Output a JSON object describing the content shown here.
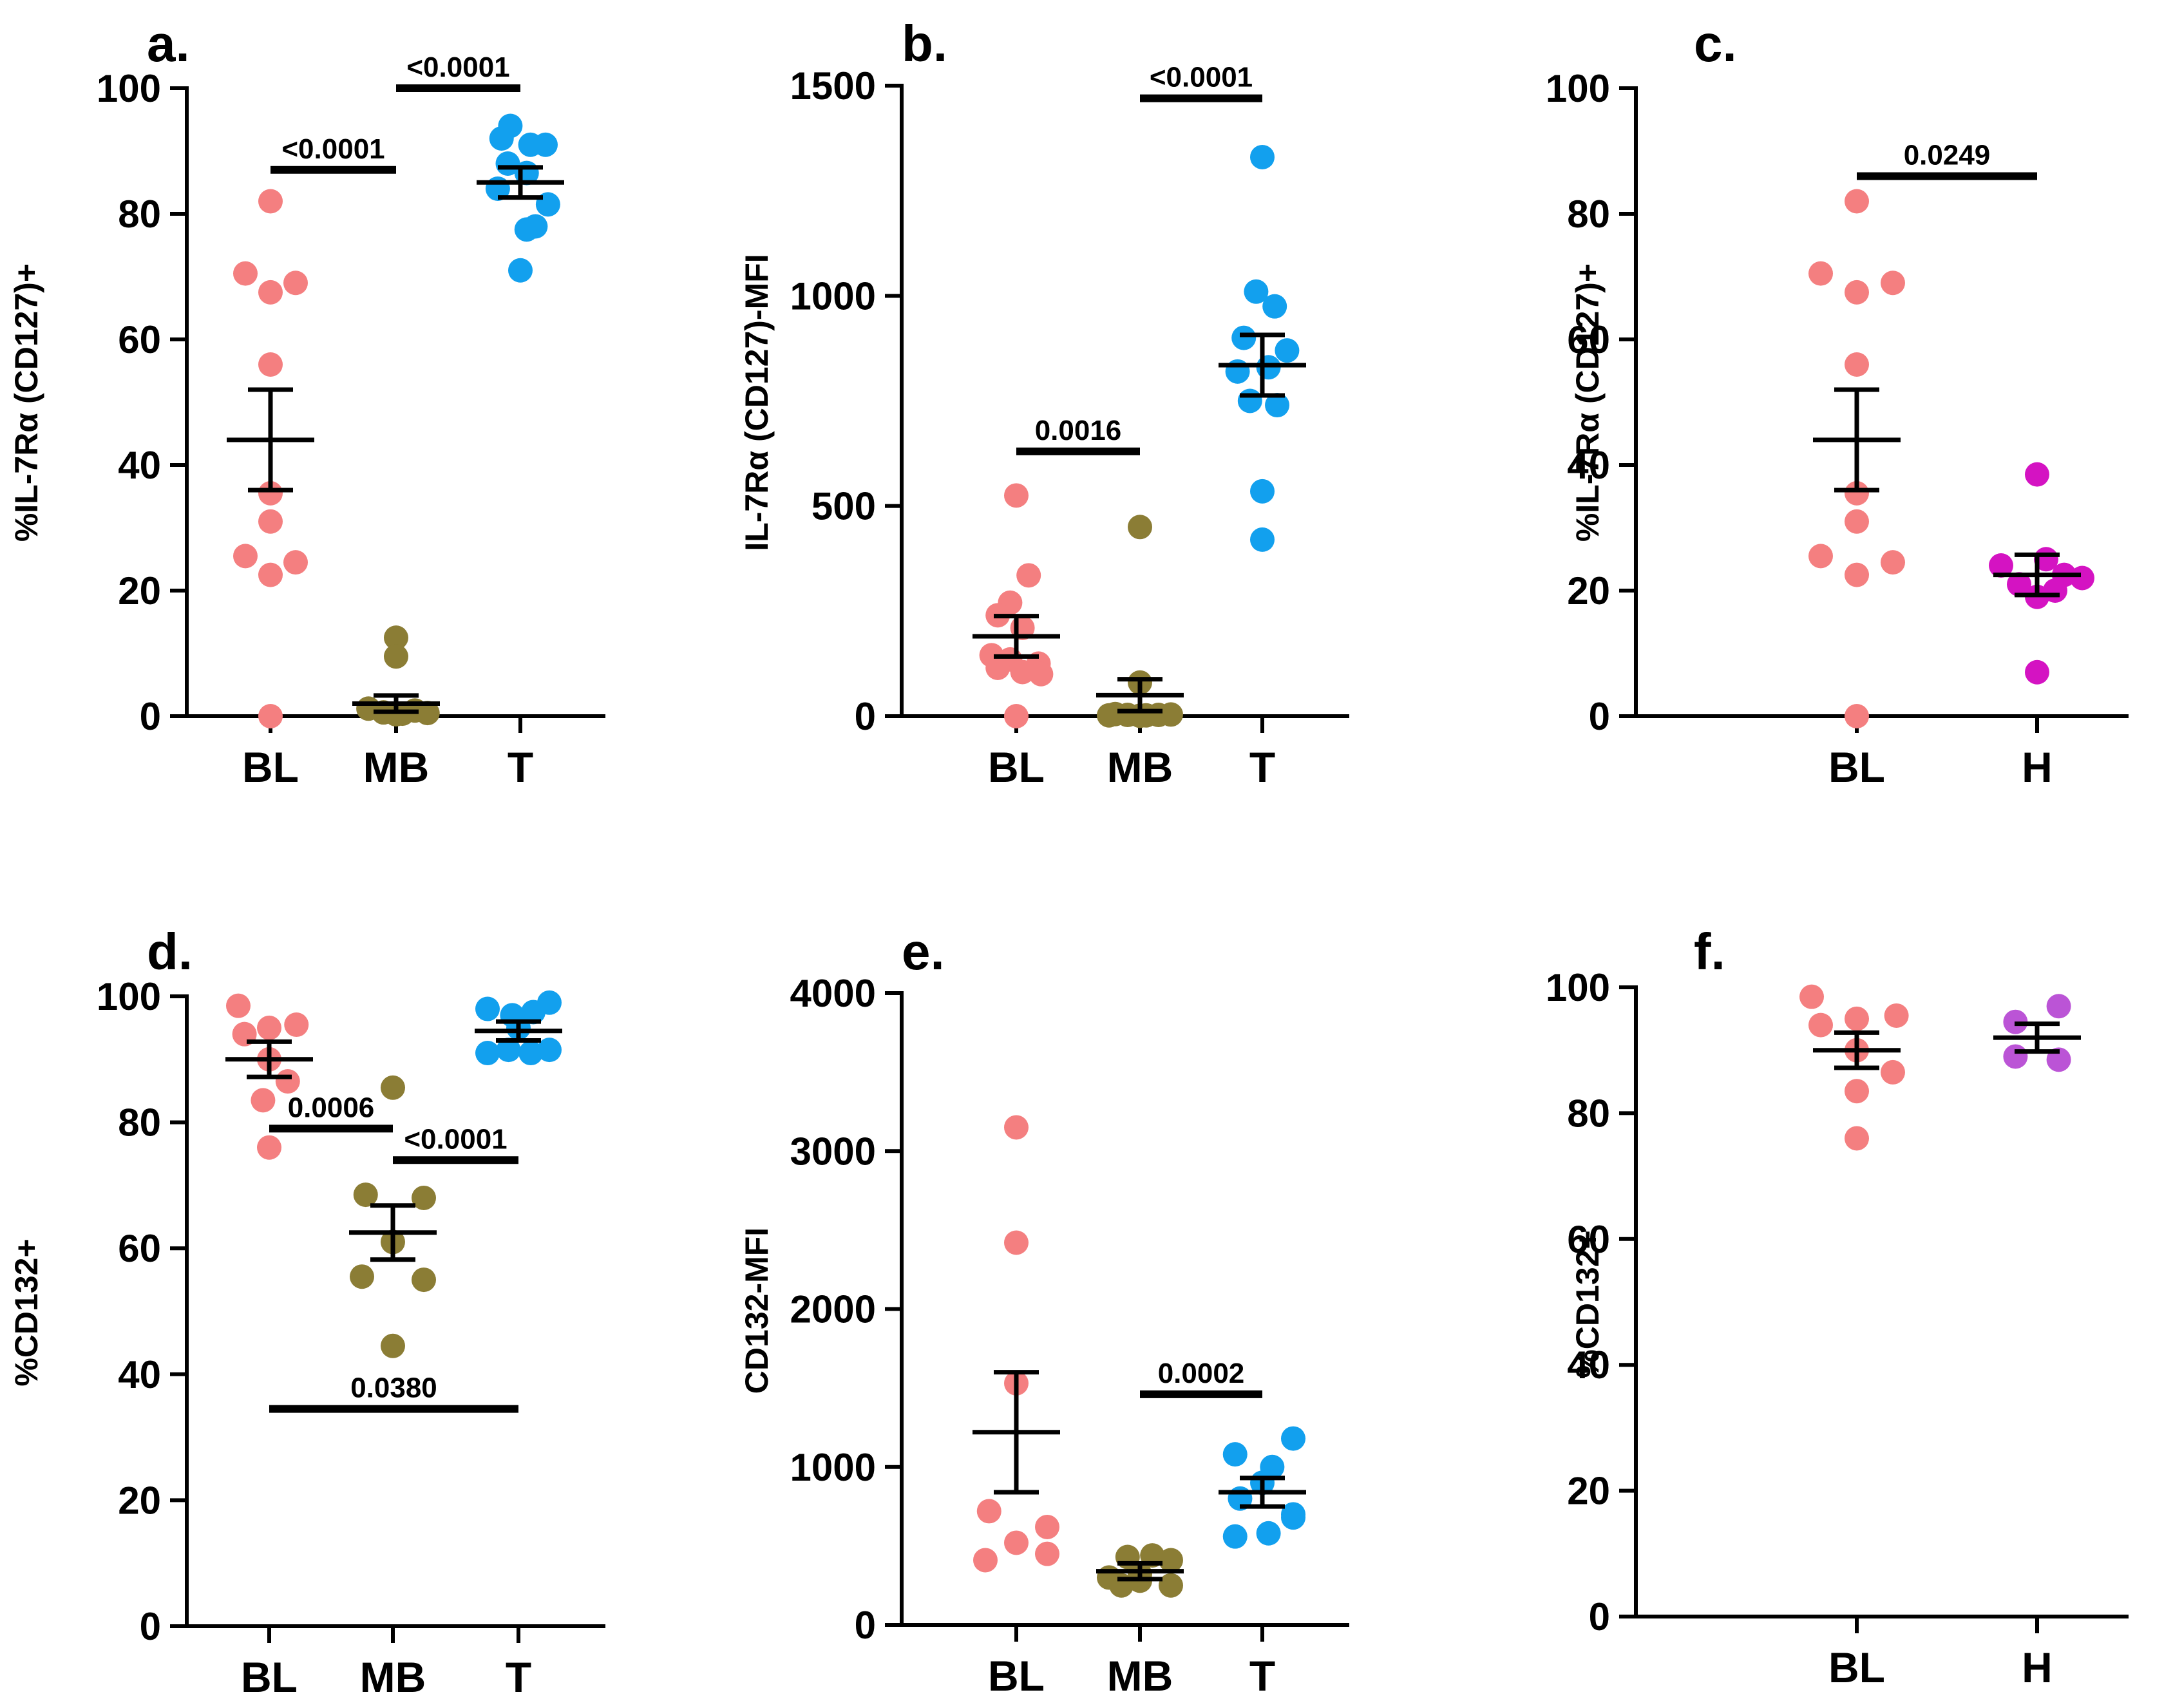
{
  "colors": {
    "BL": "#f47f80",
    "MB": "#8b7d35",
    "T": "#12a0ee",
    "H_c": "#d413c2",
    "H_f": "#bb54d6",
    "axis": "#000000"
  },
  "chart_data": [
    {
      "id": "a",
      "type": "scatter",
      "letter": "a.",
      "ylabel": "%IL-7Rα (CD127)+",
      "ylim": [
        0,
        100
      ],
      "yticks": [
        "0",
        "20",
        "40",
        "60",
        "80",
        "100"
      ],
      "categories": [
        "BL",
        "MB",
        "T"
      ],
      "series": [
        {
          "name": "BL",
          "color": "BL",
          "mean": 44,
          "sem": 8,
          "points": [
            [
              0,
              82
            ],
            [
              -0.2,
              70.5
            ],
            [
              0,
              67.5
            ],
            [
              0.2,
              69
            ],
            [
              0,
              56
            ],
            [
              0,
              35.5
            ],
            [
              0,
              31
            ],
            [
              -0.2,
              25.5
            ],
            [
              0,
              22.5
            ],
            [
              0.2,
              24.5
            ],
            [
              0,
              0
            ]
          ]
        },
        {
          "name": "MB",
          "color": "MB",
          "mean": 2,
          "sem": 1.3,
          "points": [
            [
              0,
              12.5
            ],
            [
              0,
              9.5
            ],
            [
              -0.22,
              1.2
            ],
            [
              -0.1,
              0.6
            ],
            [
              0.05,
              0.4
            ],
            [
              0.15,
              0.9
            ],
            [
              0.25,
              0.5
            ],
            [
              0,
              0.3
            ]
          ]
        },
        {
          "name": "T",
          "color": "T",
          "mean": 85,
          "sem": 2.4,
          "points": [
            [
              -0.08,
              94
            ],
            [
              0.08,
              91
            ],
            [
              -0.15,
              92
            ],
            [
              0.2,
              91
            ],
            [
              -0.1,
              88
            ],
            [
              0.05,
              86.5
            ],
            [
              -0.18,
              84
            ],
            [
              0.22,
              81.5
            ],
            [
              0.12,
              78
            ],
            [
              0.05,
              77.5
            ],
            [
              0,
              71
            ]
          ]
        }
      ],
      "comparisons": [
        {
          "from": 0,
          "to": 1,
          "y": 87,
          "label": "<0.0001"
        },
        {
          "from": 1,
          "to": 2,
          "y": 100,
          "label": "<0.0001"
        }
      ]
    },
    {
      "id": "b",
      "type": "scatter",
      "letter": "b.",
      "ylabel": "IL-7Rα (CD127)-MFI",
      "ylim": [
        0,
        1500
      ],
      "yticks": [
        "0",
        "500",
        "1000",
        "1500"
      ],
      "categories": [
        "BL",
        "MB",
        "T"
      ],
      "series": [
        {
          "name": "BL",
          "color": "BL",
          "mean": 190,
          "sem": 48,
          "points": [
            [
              0,
              525
            ],
            [
              0.1,
              335
            ],
            [
              -0.05,
              270
            ],
            [
              -0.15,
              240
            ],
            [
              0.05,
              210
            ],
            [
              -0.2,
              145
            ],
            [
              -0.05,
              135
            ],
            [
              0.18,
              125
            ],
            [
              -0.15,
              115
            ],
            [
              0.05,
              105
            ],
            [
              0.2,
              100
            ],
            [
              0,
              0
            ]
          ]
        },
        {
          "name": "MB",
          "color": "MB",
          "mean": 50,
          "sem": 38,
          "points": [
            [
              0,
              450
            ],
            [
              0,
              80
            ],
            [
              -0.2,
              5
            ],
            [
              -0.1,
              3
            ],
            [
              0.05,
              2
            ],
            [
              0.15,
              3
            ],
            [
              0.25,
              4
            ],
            [
              -0.25,
              2
            ],
            [
              0,
              1
            ]
          ]
        },
        {
          "name": "T",
          "color": "T",
          "mean": 835,
          "sem": 72,
          "points": [
            [
              0,
              1330
            ],
            [
              -0.05,
              1010
            ],
            [
              0.1,
              975
            ],
            [
              -0.15,
              900
            ],
            [
              0.2,
              870
            ],
            [
              0.05,
              830
            ],
            [
              -0.2,
              820
            ],
            [
              -0.1,
              750
            ],
            [
              0.12,
              740
            ],
            [
              0,
              535
            ],
            [
              0,
              420
            ]
          ]
        }
      ],
      "comparisons": [
        {
          "from": 0,
          "to": 1,
          "y": 630,
          "label": "0.0016"
        },
        {
          "from": 1,
          "to": 2,
          "y": 1470,
          "label": "<0.0001"
        }
      ]
    },
    {
      "id": "c",
      "type": "scatter",
      "letter": "c.",
      "ylabel": "%IL-7Rα (CD127)+",
      "ylim": [
        0,
        100
      ],
      "yticks": [
        "0",
        "20",
        "40",
        "60",
        "80",
        "100"
      ],
      "categories": [
        "BL",
        "H"
      ],
      "series": [
        {
          "name": "BL",
          "color": "BL",
          "mean": 44,
          "sem": 8,
          "points": [
            [
              0,
              82
            ],
            [
              -0.2,
              70.5
            ],
            [
              0,
              67.5
            ],
            [
              0.2,
              69
            ],
            [
              0,
              56
            ],
            [
              0,
              35.5
            ],
            [
              0,
              31
            ],
            [
              -0.2,
              25.5
            ],
            [
              0,
              22.5
            ],
            [
              0.2,
              24.5
            ],
            [
              0,
              0
            ]
          ]
        },
        {
          "name": "H",
          "color": "H_c",
          "mean": 22.5,
          "sem": 3.2,
          "points": [
            [
              0,
              38.5
            ],
            [
              -0.2,
              24
            ],
            [
              0.05,
              25
            ],
            [
              0.15,
              22.5
            ],
            [
              -0.1,
              21
            ],
            [
              0.1,
              20
            ],
            [
              0.25,
              22
            ],
            [
              0,
              19
            ],
            [
              0,
              7
            ]
          ]
        }
      ],
      "comparisons": [
        {
          "from": 0,
          "to": 1,
          "y": 86,
          "label": "0.0249"
        }
      ]
    },
    {
      "id": "d",
      "type": "scatter",
      "letter": "d.",
      "ylabel": "%CD132+",
      "ylim": [
        0,
        100
      ],
      "yticks": [
        "0",
        "20",
        "40",
        "60",
        "80",
        "100"
      ],
      "categories": [
        "BL",
        "MB",
        "T"
      ],
      "series": [
        {
          "name": "BL",
          "color": "BL",
          "mean": 90,
          "sem": 2.8,
          "points": [
            [
              -0.25,
              98.5
            ],
            [
              -0.2,
              94
            ],
            [
              0,
              95
            ],
            [
              0.22,
              95.5
            ],
            [
              0,
              90
            ],
            [
              0.15,
              86.5
            ],
            [
              -0.05,
              83.5
            ],
            [
              0,
              76
            ]
          ]
        },
        {
          "name": "MB",
          "color": "MB",
          "mean": 62.5,
          "sem": 4.3,
          "points": [
            [
              0,
              85.5
            ],
            [
              -0.22,
              68.5
            ],
            [
              0.25,
              68
            ],
            [
              0,
              61
            ],
            [
              -0.25,
              55.5
            ],
            [
              0.25,
              55
            ],
            [
              0,
              44.5
            ]
          ]
        },
        {
          "name": "T",
          "color": "T",
          "mean": 94.5,
          "sem": 1.5,
          "points": [
            [
              -0.25,
              98
            ],
            [
              -0.05,
              97
            ],
            [
              0.12,
              97.5
            ],
            [
              0.25,
              99
            ],
            [
              0,
              95
            ],
            [
              -0.25,
              91
            ],
            [
              -0.08,
              91.5
            ],
            [
              0.1,
              91
            ],
            [
              0.25,
              91.5
            ]
          ]
        }
      ],
      "comparisons": [
        {
          "from": 0,
          "to": 1,
          "y": 79,
          "label": "0.0006"
        },
        {
          "from": 1,
          "to": 2,
          "y": 74,
          "label": "<0.0001"
        },
        {
          "from": 0,
          "to": 2,
          "y": 34.5,
          "label": "0.0380"
        }
      ]
    },
    {
      "id": "e",
      "type": "scatter",
      "letter": "e.",
      "ylabel": "CD132-MFI",
      "ylim": [
        0,
        4000
      ],
      "yticks": [
        "0",
        "1000",
        "2000",
        "3000",
        "4000"
      ],
      "categories": [
        "BL",
        "MB",
        "T"
      ],
      "series": [
        {
          "name": "BL",
          "color": "BL",
          "mean": 1220,
          "sem": 380,
          "points": [
            [
              0,
              3150
            ],
            [
              0,
              2420
            ],
            [
              0,
              1530
            ],
            [
              -0.22,
              720
            ],
            [
              0.25,
              620
            ],
            [
              0,
              520
            ],
            [
              0.25,
              450
            ],
            [
              -0.25,
              410
            ]
          ]
        },
        {
          "name": "MB",
          "color": "MB",
          "mean": 340,
          "sem": 50,
          "points": [
            [
              -0.1,
              430
            ],
            [
              0.1,
              440
            ],
            [
              0.25,
              410
            ],
            [
              -0.25,
              300
            ],
            [
              0,
              280
            ],
            [
              0.25,
              250
            ],
            [
              -0.15,
              250
            ],
            [
              0,
              320
            ]
          ]
        },
        {
          "name": "T",
          "color": "T",
          "mean": 840,
          "sem": 90,
          "points": [
            [
              -0.22,
              1080
            ],
            [
              0.08,
              1000
            ],
            [
              0.25,
              1180
            ],
            [
              0,
              900
            ],
            [
              -0.18,
              800
            ],
            [
              0.25,
              700
            ],
            [
              -0.22,
              560
            ],
            [
              0.05,
              580
            ],
            [
              0.25,
              680
            ]
          ]
        }
      ],
      "comparisons": [
        {
          "from": 1,
          "to": 2,
          "y": 1460,
          "label": "0.0002"
        }
      ]
    },
    {
      "id": "f",
      "type": "scatter",
      "letter": "f.",
      "ylabel": "%CD132+",
      "ylim": [
        0,
        100
      ],
      "yticks": [
        "0",
        "20",
        "40",
        "60",
        "80",
        "100"
      ],
      "categories": [
        "BL",
        "H"
      ],
      "series": [
        {
          "name": "BL",
          "color": "BL",
          "mean": 90,
          "sem": 2.8,
          "points": [
            [
              -0.25,
              98.5
            ],
            [
              -0.2,
              94
            ],
            [
              0,
              95
            ],
            [
              0.22,
              95.5
            ],
            [
              0,
              90
            ],
            [
              0.2,
              86.5
            ],
            [
              0,
              83.5
            ],
            [
              0,
              76
            ]
          ]
        },
        {
          "name": "H",
          "color": "H_f",
          "mean": 92,
          "sem": 2.2,
          "points": [
            [
              -0.12,
              94.5
            ],
            [
              0.12,
              97
            ],
            [
              -0.12,
              89
            ],
            [
              0.12,
              88.5
            ]
          ]
        }
      ],
      "comparisons": []
    }
  ]
}
